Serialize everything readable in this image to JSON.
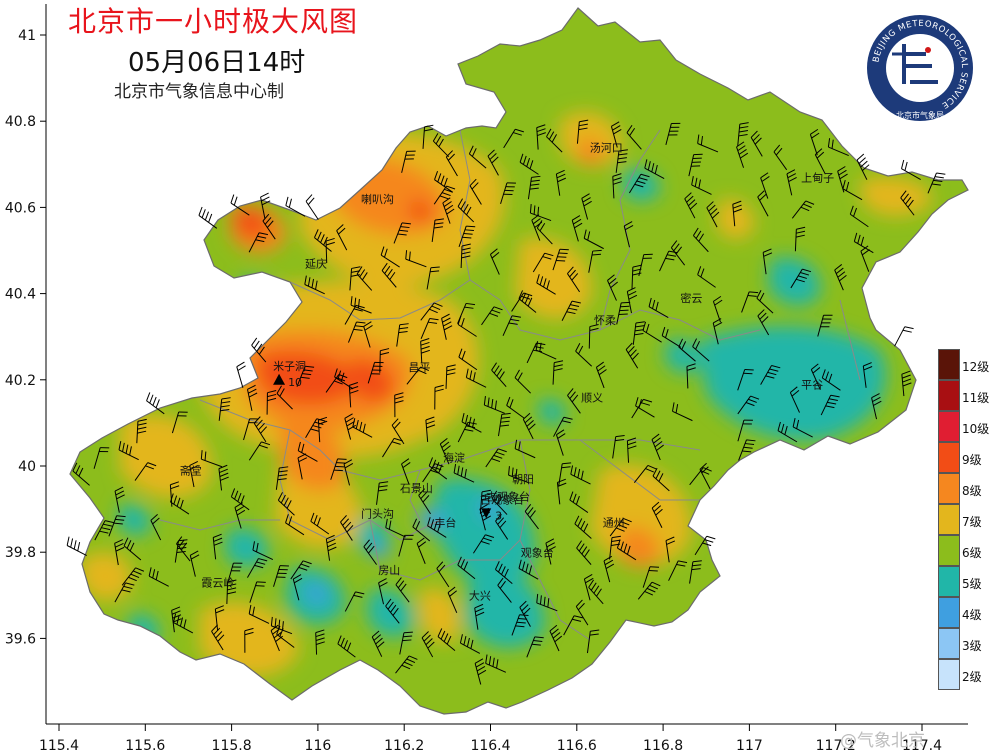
{
  "title": "北京市一小时极大风图",
  "subtitle": "05月06日14时",
  "producer": "北京市气象信息中心制",
  "logo": {
    "ring_text": "BEIJING METEOROLOGICAL SERVICE",
    "inner_text": "北京市气象局",
    "colors": {
      "ring": "#1d3a7a",
      "accent": "#d01818"
    }
  },
  "watermark": "@气象北京",
  "axes": {
    "x_ticks": [
      "115.4",
      "115.6",
      "115.8",
      "116",
      "116.2",
      "116.4",
      "116.6",
      "116.8",
      "117",
      "117.2",
      "117.4"
    ],
    "y_ticks": [
      "41",
      "40.8",
      "40.6",
      "40.4",
      "40.2",
      "40",
      "39.8",
      "39.6"
    ],
    "x_range": [
      115.4,
      117.4
    ],
    "y_range": [
      39.6,
      41.0
    ]
  },
  "legend": [
    {
      "label": "12级",
      "color": "#5a1408"
    },
    {
      "label": "11级",
      "color": "#a80f12"
    },
    {
      "label": "10级",
      "color": "#e01e32"
    },
    {
      "label": "9级",
      "color": "#f24d16"
    },
    {
      "label": "8级",
      "color": "#f5871f"
    },
    {
      "label": "7级",
      "color": "#e3b61d"
    },
    {
      "label": "6级",
      "color": "#8cbd1c"
    },
    {
      "label": "5级",
      "color": "#21b6a8"
    },
    {
      "label": "4级",
      "color": "#3f9fe0"
    },
    {
      "label": "3级",
      "color": "#8cc6f4"
    },
    {
      "label": "2级",
      "color": "#c7e3fb"
    }
  ],
  "places": [
    {
      "name": "汤河口",
      "lon": 116.63,
      "lat": 40.73
    },
    {
      "name": "喇叭沟",
      "lon": 116.1,
      "lat": 40.61
    },
    {
      "name": "延庆",
      "lon": 115.97,
      "lat": 40.46
    },
    {
      "name": "怀柔",
      "lon": 116.64,
      "lat": 40.33
    },
    {
      "name": "密云",
      "lon": 116.84,
      "lat": 40.38
    },
    {
      "name": "上甸子",
      "lon": 117.12,
      "lat": 40.66
    },
    {
      "name": "昌平",
      "lon": 116.21,
      "lat": 40.22
    },
    {
      "name": "顺义",
      "lon": 116.61,
      "lat": 40.15
    },
    {
      "name": "平谷",
      "lon": 117.12,
      "lat": 40.18
    },
    {
      "name": "海淀",
      "lon": 116.29,
      "lat": 40.01
    },
    {
      "name": "石景山",
      "lon": 116.19,
      "lat": 39.94
    },
    {
      "name": "朝阳",
      "lon": 116.45,
      "lat": 39.96
    },
    {
      "name": "古观象台",
      "lon": 116.39,
      "lat": 39.92
    },
    {
      "name": "门头沟",
      "lon": 116.1,
      "lat": 39.88
    },
    {
      "name": "丰台",
      "lon": 116.27,
      "lat": 39.86
    },
    {
      "name": "斋堂",
      "lon": 115.68,
      "lat": 39.98
    },
    {
      "name": "通州",
      "lon": 116.66,
      "lat": 39.86
    },
    {
      "name": "房山",
      "lon": 116.14,
      "lat": 39.75
    },
    {
      "name": "观象台",
      "lon": 116.47,
      "lat": 39.79
    },
    {
      "name": "大兴",
      "lon": 116.35,
      "lat": 39.69
    },
    {
      "name": "霞云岭",
      "lon": 115.73,
      "lat": 39.72
    }
  ],
  "stations": [
    {
      "name": "米子洞",
      "value": "10",
      "lon": 115.91,
      "lat": 40.2,
      "marker": "up"
    },
    {
      "name": "古观象台",
      "value": "3",
      "lon": 116.39,
      "lat": 39.89,
      "marker": "down"
    }
  ],
  "wind_barbs": {
    "note_visible": "barbs shown as wind-direction glyphs across the municipality",
    "count_rows": 14
  }
}
